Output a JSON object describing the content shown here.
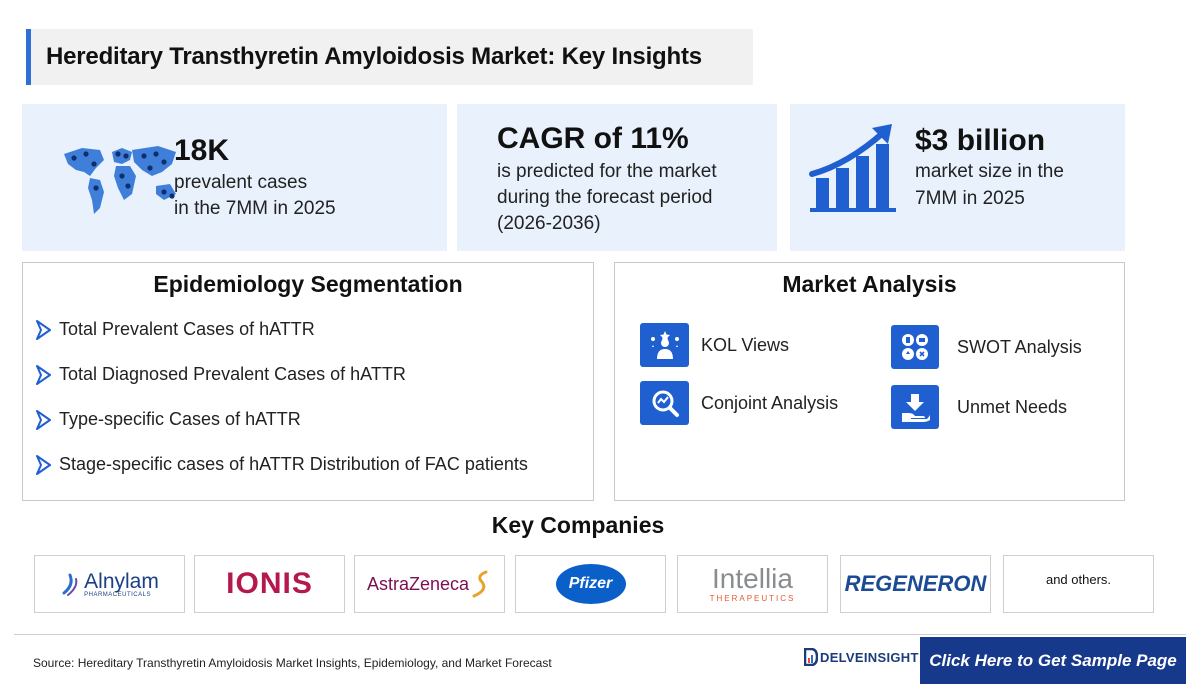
{
  "title": "Hereditary Transthyretin Amyloidosis Market: Key Insights",
  "stats": [
    {
      "headline": "18K",
      "line1": "prevalent cases",
      "line2": "in the 7MM in 2025",
      "icon": "world-map-icon"
    },
    {
      "headline": "CAGR of 11%",
      "line1": "is predicted for the market",
      "line2": "during the forecast period",
      "line3": "(2026-2036)"
    },
    {
      "headline": "$3 billion",
      "line1": "market size in the",
      "line2": "7MM in 2025",
      "icon": "growth-chart-icon"
    }
  ],
  "epidemiology": {
    "title": "Epidemiology Segmentation",
    "items": [
      "Total Prevalent Cases of hATTR",
      "Total Diagnosed Prevalent Cases of hATTR",
      "Type-specific Cases of hATTR",
      "Stage-specific cases of hATTR Distribution of FAC patients"
    ]
  },
  "market_analysis": {
    "title": "Market Analysis",
    "items": [
      {
        "label": "KOL Views",
        "icon": "kol-icon"
      },
      {
        "label": "SWOT Analysis",
        "icon": "swot-icon"
      },
      {
        "label": "Conjoint Analysis",
        "icon": "conjoint-analysis-icon"
      },
      {
        "label": "Unmet Needs",
        "icon": "unmet-needs-icon"
      }
    ]
  },
  "key_companies": {
    "title": "Key Companies",
    "logos": [
      {
        "name": "Alnylam",
        "sub": "PHARMACEUTICALS"
      },
      {
        "name": "IONIS"
      },
      {
        "name": "AstraZeneca"
      },
      {
        "name": "Pfizer"
      },
      {
        "name": "Intellia",
        "sub": "THERAPEUTICS"
      },
      {
        "name": "REGENERON"
      }
    ],
    "others": "and others."
  },
  "footer": {
    "source": "Source: Hereditary Transthyretin Amyloidosis Market Insights, Epidemiology, and Market Forecast",
    "brand": "DELVEINSIGHT",
    "cta": "Click Here to Get Sample Page"
  },
  "colors": {
    "accent": "#2f6fd6",
    "card_bg": "#e8f1fc",
    "icon_blue": "#1f5fd0",
    "cta_bg": "#17398b",
    "ionis": "#b5174f",
    "astrazeneca": "#7d0e52",
    "pfizer": "#0a60c8",
    "regeneron": "#1c4b95"
  }
}
